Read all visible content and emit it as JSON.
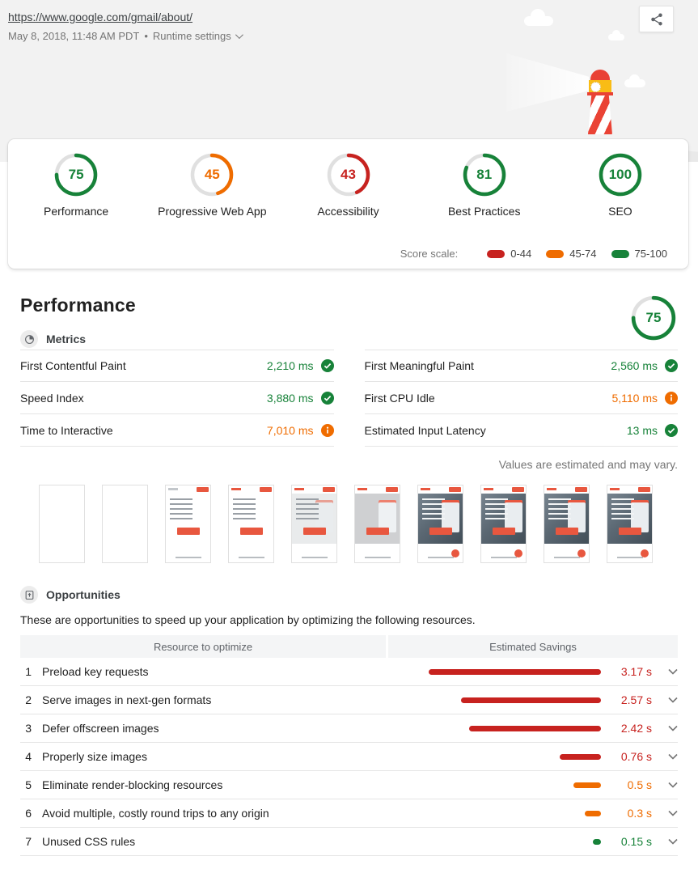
{
  "colors": {
    "pass": "#178239",
    "average": "#ef6c00",
    "fail": "#c7221f",
    "track": "#e0e0e0"
  },
  "header": {
    "url": "https://www.google.com/gmail/about/",
    "date": "May 8, 2018, 11:48 AM PDT",
    "separator": "•",
    "runtime_settings_label": "Runtime settings"
  },
  "summary": {
    "gauges": [
      {
        "label": "Performance",
        "score": 75,
        "rating": "pass"
      },
      {
        "label": "Progressive Web App",
        "score": 45,
        "rating": "average"
      },
      {
        "label": "Accessibility",
        "score": 43,
        "rating": "fail"
      },
      {
        "label": "Best Practices",
        "score": 81,
        "rating": "pass"
      },
      {
        "label": "SEO",
        "score": 100,
        "rating": "pass"
      }
    ],
    "scale_label": "Score scale:",
    "scale": [
      {
        "range": "0-44",
        "rating": "fail"
      },
      {
        "range": "45-74",
        "rating": "average"
      },
      {
        "range": "75-100",
        "rating": "pass"
      }
    ]
  },
  "performance": {
    "title": "Performance",
    "score": 75,
    "score_rating": "pass",
    "metrics_heading": "Metrics",
    "metrics": [
      {
        "name": "First Contentful Paint",
        "value": "2,210 ms",
        "rating": "pass",
        "icon": "check"
      },
      {
        "name": "First Meaningful Paint",
        "value": "2,560 ms",
        "rating": "pass",
        "icon": "check"
      },
      {
        "name": "Speed Index",
        "value": "3,880 ms",
        "rating": "pass",
        "icon": "check"
      },
      {
        "name": "First CPU Idle",
        "value": "5,110 ms",
        "rating": "average",
        "icon": "info"
      },
      {
        "name": "Time to Interactive",
        "value": "7,010 ms",
        "rating": "average",
        "icon": "info"
      },
      {
        "name": "Estimated Input Latency",
        "value": "13 ms",
        "rating": "pass",
        "icon": "check"
      }
    ],
    "estimate_note": "Values are estimated and may vary.",
    "filmstrip": [
      {
        "variant": "blank"
      },
      {
        "variant": "blank"
      },
      {
        "variant": "text"
      },
      {
        "variant": "text-logo"
      },
      {
        "variant": "text-image"
      },
      {
        "variant": "photo-wash"
      },
      {
        "variant": "photo-text-fab"
      },
      {
        "variant": "photo-text-fab"
      },
      {
        "variant": "photo-text-fab"
      },
      {
        "variant": "photo-text-fab"
      }
    ]
  },
  "opportunities": {
    "heading": "Opportunities",
    "description": "These are opportunities to speed up your application by optimizing the following resources.",
    "col_resource": "Resource to optimize",
    "col_savings": "Estimated Savings",
    "max_seconds": 3.17,
    "items": [
      {
        "num": "1",
        "label": "Preload key requests",
        "savings": "3.17 s",
        "seconds": 3.17,
        "rating": "fail"
      },
      {
        "num": "2",
        "label": "Serve images in next-gen formats",
        "savings": "2.57 s",
        "seconds": 2.57,
        "rating": "fail"
      },
      {
        "num": "3",
        "label": "Defer offscreen images",
        "savings": "2.42 s",
        "seconds": 2.42,
        "rating": "fail"
      },
      {
        "num": "4",
        "label": "Properly size images",
        "savings": "0.76 s",
        "seconds": 0.76,
        "rating": "fail"
      },
      {
        "num": "5",
        "label": "Eliminate render-blocking resources",
        "savings": "0.5 s",
        "seconds": 0.5,
        "rating": "average"
      },
      {
        "num": "6",
        "label": "Avoid multiple, costly round trips to any origin",
        "savings": "0.3 s",
        "seconds": 0.3,
        "rating": "average"
      },
      {
        "num": "7",
        "label": "Unused CSS rules",
        "savings": "0.15 s",
        "seconds": 0.15,
        "rating": "pass"
      }
    ]
  }
}
